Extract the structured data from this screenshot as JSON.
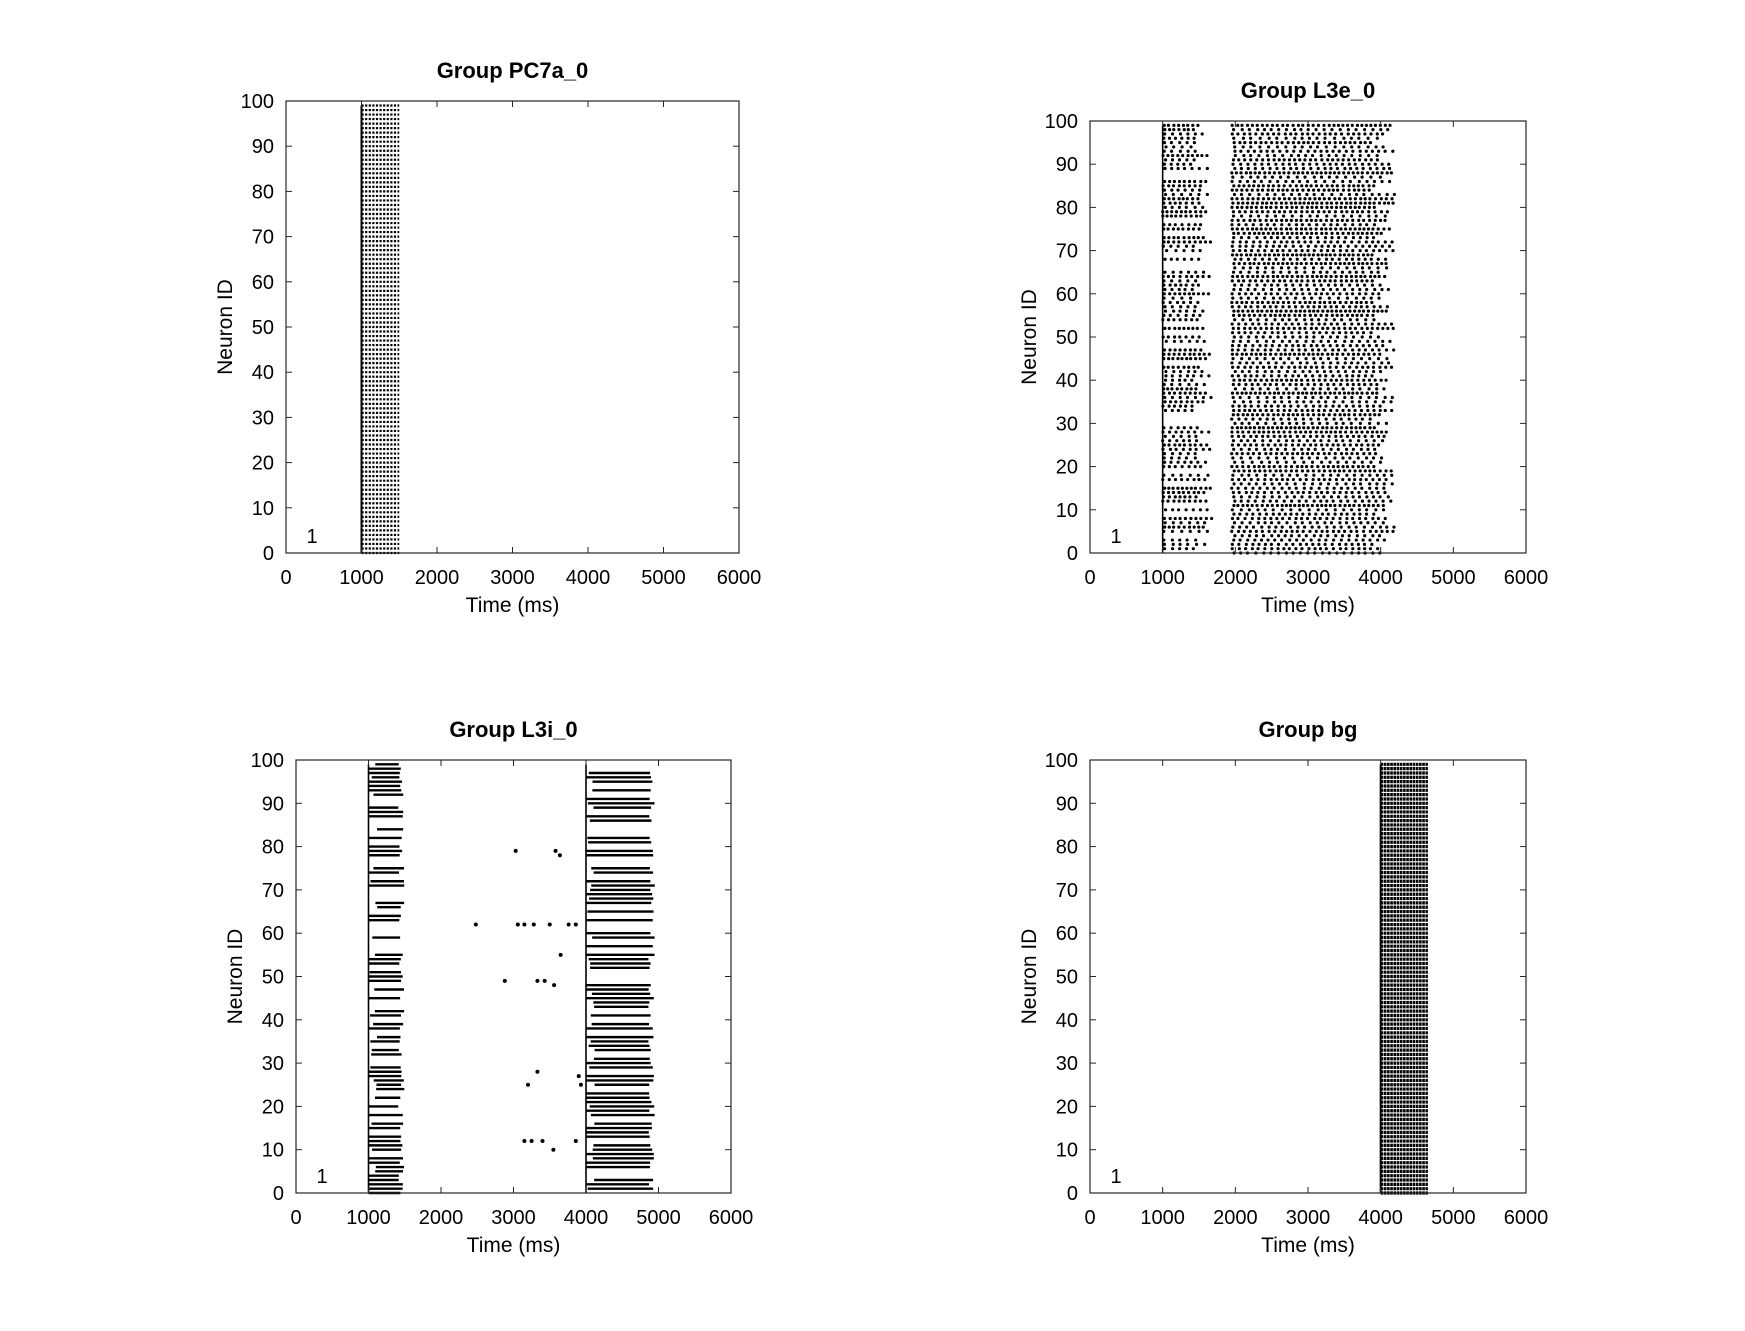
{
  "chart_data": [
    {
      "type": "scatter",
      "title": "Group PC7a_0",
      "xlabel": "Time (ms)",
      "ylabel": "Neuron ID",
      "xlim": [
        0,
        6000
      ],
      "ylim": [
        0,
        100
      ],
      "xticks": [
        0,
        1000,
        2000,
        3000,
        4000,
        5000,
        6000
      ],
      "yticks": [
        0,
        10,
        20,
        30,
        40,
        50,
        60,
        70,
        80,
        90,
        100
      ],
      "corner_label": "1",
      "grid": false,
      "style": "raster-dense",
      "spike_windows": [
        [
          1000,
          1500
        ]
      ],
      "neuron_range": [
        0,
        99
      ],
      "spike_interval_ms": 20
    },
    {
      "type": "scatter",
      "title": "Group L3e_0",
      "xlabel": "Time (ms)",
      "ylabel": "Neuron ID",
      "xlim": [
        0,
        6000
      ],
      "ylim": [
        0,
        100
      ],
      "xticks": [
        0,
        1000,
        2000,
        3000,
        4000,
        5000,
        6000
      ],
      "yticks": [
        0,
        10,
        20,
        30,
        40,
        50,
        60,
        70,
        80,
        90,
        100
      ],
      "corner_label": "1",
      "grid": false,
      "style": "raster-sparse",
      "spike_windows": [
        [
          1000,
          1700
        ],
        [
          1950,
          4250
        ]
      ],
      "neuron_range": [
        0,
        99
      ],
      "spike_interval_ms": 90
    },
    {
      "type": "scatter",
      "title": "Group L3i_0",
      "xlabel": "Time (ms)",
      "ylabel": "Neuron ID",
      "xlim": [
        0,
        6000
      ],
      "ylim": [
        0,
        100
      ],
      "xticks": [
        0,
        1000,
        2000,
        3000,
        4000,
        5000,
        6000
      ],
      "yticks": [
        0,
        10,
        20,
        30,
        40,
        50,
        60,
        70,
        80,
        90,
        100
      ],
      "corner_label": "1",
      "grid": false,
      "style": "raster-lines",
      "spike_windows": [
        [
          1000,
          1500
        ],
        [
          4000,
          4950
        ]
      ],
      "neuron_range": [
        0,
        99
      ],
      "spike_interval_ms": 12,
      "isolated_spikes": [
        [
          2480,
          62
        ],
        [
          2880,
          49
        ],
        [
          3030,
          79
        ],
        [
          3060,
          62
        ],
        [
          3150,
          62
        ],
        [
          3150,
          12
        ],
        [
          3200,
          25
        ],
        [
          3250,
          12
        ],
        [
          3280,
          62
        ],
        [
          3330,
          28
        ],
        [
          3330,
          49
        ],
        [
          3400,
          12
        ],
        [
          3430,
          49
        ],
        [
          3500,
          62
        ],
        [
          3550,
          10
        ],
        [
          3560,
          48
        ],
        [
          3580,
          79
        ],
        [
          3640,
          78
        ],
        [
          3650,
          55
        ],
        [
          3760,
          62
        ],
        [
          3860,
          62
        ],
        [
          3860,
          12
        ],
        [
          3900,
          27
        ],
        [
          3930,
          25
        ]
      ]
    },
    {
      "type": "scatter",
      "title": "Group bg",
      "xlabel": "Time (ms)",
      "ylabel": "Neuron ID",
      "xlim": [
        0,
        6000
      ],
      "ylim": [
        0,
        100
      ],
      "xticks": [
        0,
        1000,
        2000,
        3000,
        4000,
        5000,
        6000
      ],
      "yticks": [
        0,
        10,
        20,
        30,
        40,
        50,
        60,
        70,
        80,
        90,
        100
      ],
      "corner_label": "1",
      "grid": false,
      "style": "raster-solid",
      "spike_windows": [
        [
          4000,
          4650
        ]
      ],
      "neuron_range": [
        0,
        99
      ],
      "spike_interval_ms": 8
    }
  ]
}
